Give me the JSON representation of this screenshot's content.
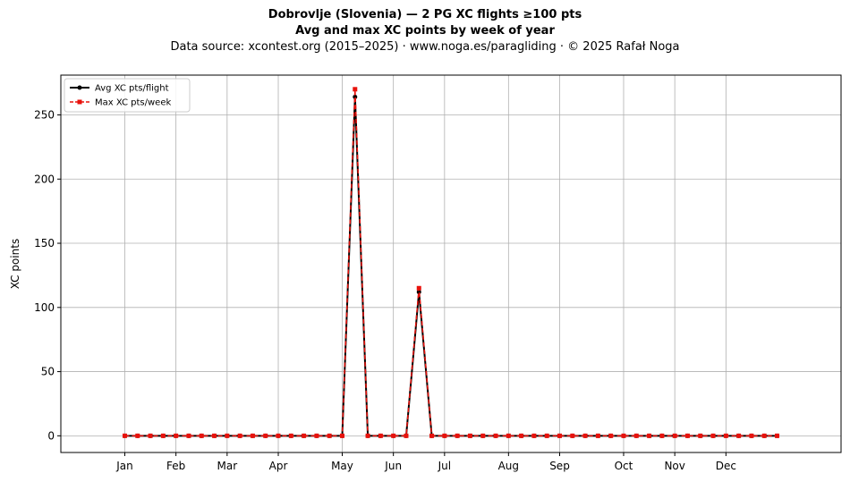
{
  "header": {
    "title_line1": "Dobrovlje (Slovenia)  —  2 PG XC flights ≥100 pts",
    "title_line2": "Avg and max XC points by week of year",
    "subtitle": "Data source: xcontest.org (2015–2025)  ·  www.noga.es/paragliding  ·  © 2025 Rafał Noga"
  },
  "chart_data": {
    "type": "line",
    "ylabel": "XC points",
    "xlabel": "",
    "ylim": [
      -13,
      281
    ],
    "xlim": [
      -4,
      57
    ],
    "y_ticks": [
      0,
      50,
      100,
      150,
      200,
      250
    ],
    "x_ticks": [
      {
        "label": "Jan",
        "week": 1
      },
      {
        "label": "Feb",
        "week": 5
      },
      {
        "label": "Mar",
        "week": 9
      },
      {
        "label": "Apr",
        "week": 13
      },
      {
        "label": "May",
        "week": 18
      },
      {
        "label": "Jun",
        "week": 22
      },
      {
        "label": "Jul",
        "week": 26
      },
      {
        "label": "Aug",
        "week": 31
      },
      {
        "label": "Sep",
        "week": 35
      },
      {
        "label": "Oct",
        "week": 40
      },
      {
        "label": "Nov",
        "week": 44
      },
      {
        "label": "Dec",
        "week": 48
      }
    ],
    "grid": true,
    "legend_position": "top-left",
    "x": [
      1,
      2,
      3,
      4,
      5,
      6,
      7,
      8,
      9,
      10,
      11,
      12,
      13,
      14,
      15,
      16,
      17,
      18,
      19,
      20,
      21,
      22,
      23,
      24,
      25,
      26,
      27,
      28,
      29,
      30,
      31,
      32,
      33,
      34,
      35,
      36,
      37,
      38,
      39,
      40,
      41,
      42,
      43,
      44,
      45,
      46,
      47,
      48,
      49,
      50,
      51,
      52
    ],
    "series": [
      {
        "name": "Avg XC pts/flight",
        "color": "#000000",
        "style": "solid",
        "marker": "circle",
        "values": [
          0,
          0,
          0,
          0,
          0,
          0,
          0,
          0,
          0,
          0,
          0,
          0,
          0,
          0,
          0,
          0,
          0,
          0,
          264,
          0,
          0,
          0,
          0,
          112,
          0,
          0,
          0,
          0,
          0,
          0,
          0,
          0,
          0,
          0,
          0,
          0,
          0,
          0,
          0,
          0,
          0,
          0,
          0,
          0,
          0,
          0,
          0,
          0,
          0,
          0,
          0,
          0
        ]
      },
      {
        "name": "Max XC pts/week",
        "color": "#e8120c",
        "style": "dashed",
        "marker": "square",
        "values": [
          0,
          0,
          0,
          0,
          0,
          0,
          0,
          0,
          0,
          0,
          0,
          0,
          0,
          0,
          0,
          0,
          0,
          0,
          270,
          0,
          0,
          0,
          0,
          115,
          0,
          0,
          0,
          0,
          0,
          0,
          0,
          0,
          0,
          0,
          0,
          0,
          0,
          0,
          0,
          0,
          0,
          0,
          0,
          0,
          0,
          0,
          0,
          0,
          0,
          0,
          0,
          0
        ]
      }
    ]
  }
}
